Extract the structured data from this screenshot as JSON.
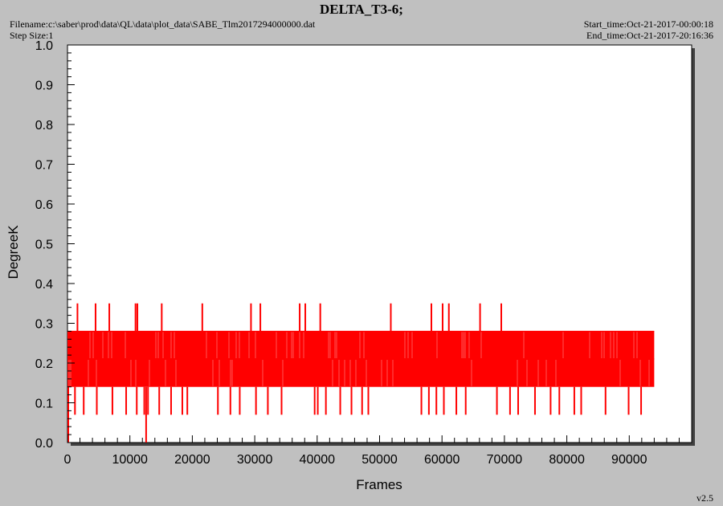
{
  "header": {
    "title": "DELTA_T3-6;",
    "filename": "Filename:c:\\saber\\prod\\data\\QL\\data\\plot_data\\SABE_Tlm2017294000000.dat",
    "step_size": "Step Size:1",
    "start_time": "Start_time:Oct-21-2017-00:00:18",
    "end_time": "End_time:Oct-21-2017-20:16:36",
    "version": "v2.5"
  },
  "colors": {
    "background": "#c0c0c0",
    "plot_area": "#ffffff",
    "series": "#ff0000",
    "shadow": "#404040"
  },
  "chart_data": {
    "type": "line",
    "title": "DELTA_T3-6;",
    "xlabel": "Frames",
    "ylabel": "DegreeK",
    "xlim": [
      0,
      100000
    ],
    "ylim": [
      0,
      1.0
    ],
    "x_ticks": [
      "0",
      "10000",
      "20000",
      "30000",
      "40000",
      "50000",
      "60000",
      "70000",
      "80000",
      "90000"
    ],
    "y_ticks": [
      "0.0",
      "0.1",
      "0.2",
      "0.3",
      "0.4",
      "0.5",
      "0.6",
      "0.7",
      "0.8",
      "0.9",
      "1.0"
    ],
    "grid": false,
    "legend": "none",
    "series": [
      {
        "levels": [
          0.07,
          0.14,
          0.21,
          0.28,
          0.35
        ],
        "x_range": [
          0,
          94000
        ],
        "band": [
          0.14,
          0.28
        ],
        "spikes_high": [
          {
            "x": 1600,
            "y": 0.35
          },
          {
            "x": 4500,
            "y": 0.35
          },
          {
            "x": 6700,
            "y": 0.35
          },
          {
            "x": 10900,
            "y": 0.35
          },
          {
            "x": 11200,
            "y": 0.35
          },
          {
            "x": 15100,
            "y": 0.35
          },
          {
            "x": 21600,
            "y": 0.35
          },
          {
            "x": 29400,
            "y": 0.35
          },
          {
            "x": 30900,
            "y": 0.35
          },
          {
            "x": 37200,
            "y": 0.35
          },
          {
            "x": 38100,
            "y": 0.35
          },
          {
            "x": 40500,
            "y": 0.35
          },
          {
            "x": 51800,
            "y": 0.35
          },
          {
            "x": 58300,
            "y": 0.35
          },
          {
            "x": 60100,
            "y": 0.35
          },
          {
            "x": 61100,
            "y": 0.35
          },
          {
            "x": 66100,
            "y": 0.35
          },
          {
            "x": 69500,
            "y": 0.35
          }
        ],
        "spikes_low": [
          {
            "x": 1200,
            "y": 0.07
          },
          {
            "x": 2600,
            "y": 0.07
          },
          {
            "x": 4700,
            "y": 0.07
          },
          {
            "x": 7200,
            "y": 0.07
          },
          {
            "x": 9400,
            "y": 0.07
          },
          {
            "x": 11100,
            "y": 0.07
          },
          {
            "x": 12300,
            "y": 0.07
          },
          {
            "x": 12600,
            "y": 0.0
          },
          {
            "x": 12900,
            "y": 0.07
          },
          {
            "x": 14700,
            "y": 0.07
          },
          {
            "x": 16600,
            "y": 0.07
          },
          {
            "x": 18400,
            "y": 0.07
          },
          {
            "x": 19200,
            "y": 0.07
          },
          {
            "x": 24100,
            "y": 0.07
          },
          {
            "x": 26100,
            "y": 0.07
          },
          {
            "x": 27600,
            "y": 0.07
          },
          {
            "x": 30200,
            "y": 0.07
          },
          {
            "x": 32100,
            "y": 0.07
          },
          {
            "x": 34300,
            "y": 0.07
          },
          {
            "x": 39600,
            "y": 0.07
          },
          {
            "x": 40100,
            "y": 0.07
          },
          {
            "x": 41400,
            "y": 0.07
          },
          {
            "x": 43700,
            "y": 0.07
          },
          {
            "x": 45500,
            "y": 0.07
          },
          {
            "x": 47200,
            "y": 0.07
          },
          {
            "x": 48200,
            "y": 0.07
          },
          {
            "x": 56700,
            "y": 0.07
          },
          {
            "x": 57900,
            "y": 0.07
          },
          {
            "x": 59100,
            "y": 0.07
          },
          {
            "x": 60300,
            "y": 0.07
          },
          {
            "x": 62300,
            "y": 0.07
          },
          {
            "x": 63800,
            "y": 0.07
          },
          {
            "x": 68800,
            "y": 0.07
          },
          {
            "x": 70900,
            "y": 0.07
          },
          {
            "x": 72200,
            "y": 0.07
          },
          {
            "x": 74900,
            "y": 0.07
          },
          {
            "x": 77400,
            "y": 0.07
          },
          {
            "x": 78800,
            "y": 0.07
          },
          {
            "x": 81200,
            "y": 0.07
          },
          {
            "x": 82300,
            "y": 0.07
          },
          {
            "x": 86200,
            "y": 0.07
          },
          {
            "x": 89900,
            "y": 0.07
          },
          {
            "x": 91900,
            "y": 0.07
          }
        ]
      }
    ]
  }
}
